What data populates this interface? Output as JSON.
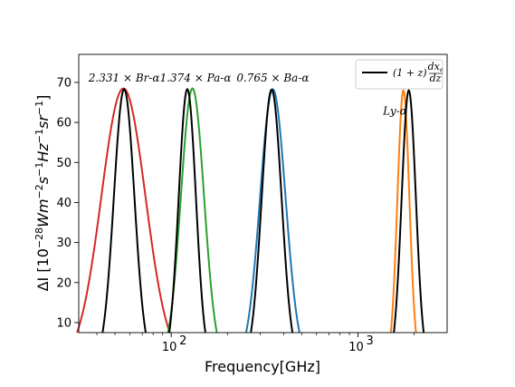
{
  "chart_data": {
    "type": "line",
    "title": "",
    "xlabel": "Frequency[GHz]",
    "ylabel_parts": {
      "prefix": "ΔI [10",
      "exp1": "−28",
      "mid1": "Wm",
      "exp2": "−2",
      "mid2": "s",
      "exp3": "−1",
      "mid3": "Hz",
      "exp4": "−1",
      "mid4": "sr",
      "exp5": "−1",
      "suffix": "]"
    },
    "xscale": "log",
    "xlim": [
      32,
      3000
    ],
    "ylim": [
      7.5,
      77
    ],
    "x_ticks": [
      {
        "value": 100,
        "base": "10",
        "exp": "2"
      },
      {
        "value": 1000,
        "base": "10",
        "exp": "3"
      }
    ],
    "y_ticks": [
      10,
      20,
      30,
      40,
      50,
      60,
      70
    ],
    "grid": false,
    "legend": {
      "placement": "top-right",
      "entries": [
        {
          "pre": "(1 + z)",
          "frac_num": "dx",
          "frac_num_sub": "e",
          "frac_den": "dz",
          "color": "#000000"
        }
      ]
    },
    "annotations": [
      {
        "text": "2.331 × Br-α",
        "x": 56,
        "y": 70.2
      },
      {
        "text": "1.374 × Pa-α",
        "x": 135,
        "y": 70.2
      },
      {
        "text": "0.765 × Ba-α",
        "x": 350,
        "y": 70.2
      },
      {
        "text": "Ly-α",
        "x": 1580,
        "y": 62
      }
    ],
    "series": [
      {
        "color": "#d62728",
        "peak_x": 55.5,
        "peak_y": 68.5,
        "sigma_dex": 0.118
      },
      {
        "color": "#000000",
        "peak_x": 56,
        "peak_y": 68.3,
        "sigma_dex": 0.055
      },
      {
        "color": "#2ca02c",
        "peak_x": 130,
        "peak_y": 68.5,
        "sigma_dex": 0.062
      },
      {
        "color": "#000000",
        "peak_x": 122,
        "peak_y": 68.3,
        "sigma_dex": 0.046
      },
      {
        "color": "#1f77b4",
        "peak_x": 350,
        "peak_y": 68.3,
        "sigma_dex": 0.068
      },
      {
        "color": "#000000",
        "peak_x": 345,
        "peak_y": 68.2,
        "sigma_dex": 0.053
      },
      {
        "color": "#ff7f0e",
        "peak_x": 1750,
        "peak_y": 68,
        "sigma_dex": 0.032
      },
      {
        "color": "#000000",
        "peak_x": 1870,
        "peak_y": 68,
        "sigma_dex": 0.038
      }
    ]
  }
}
